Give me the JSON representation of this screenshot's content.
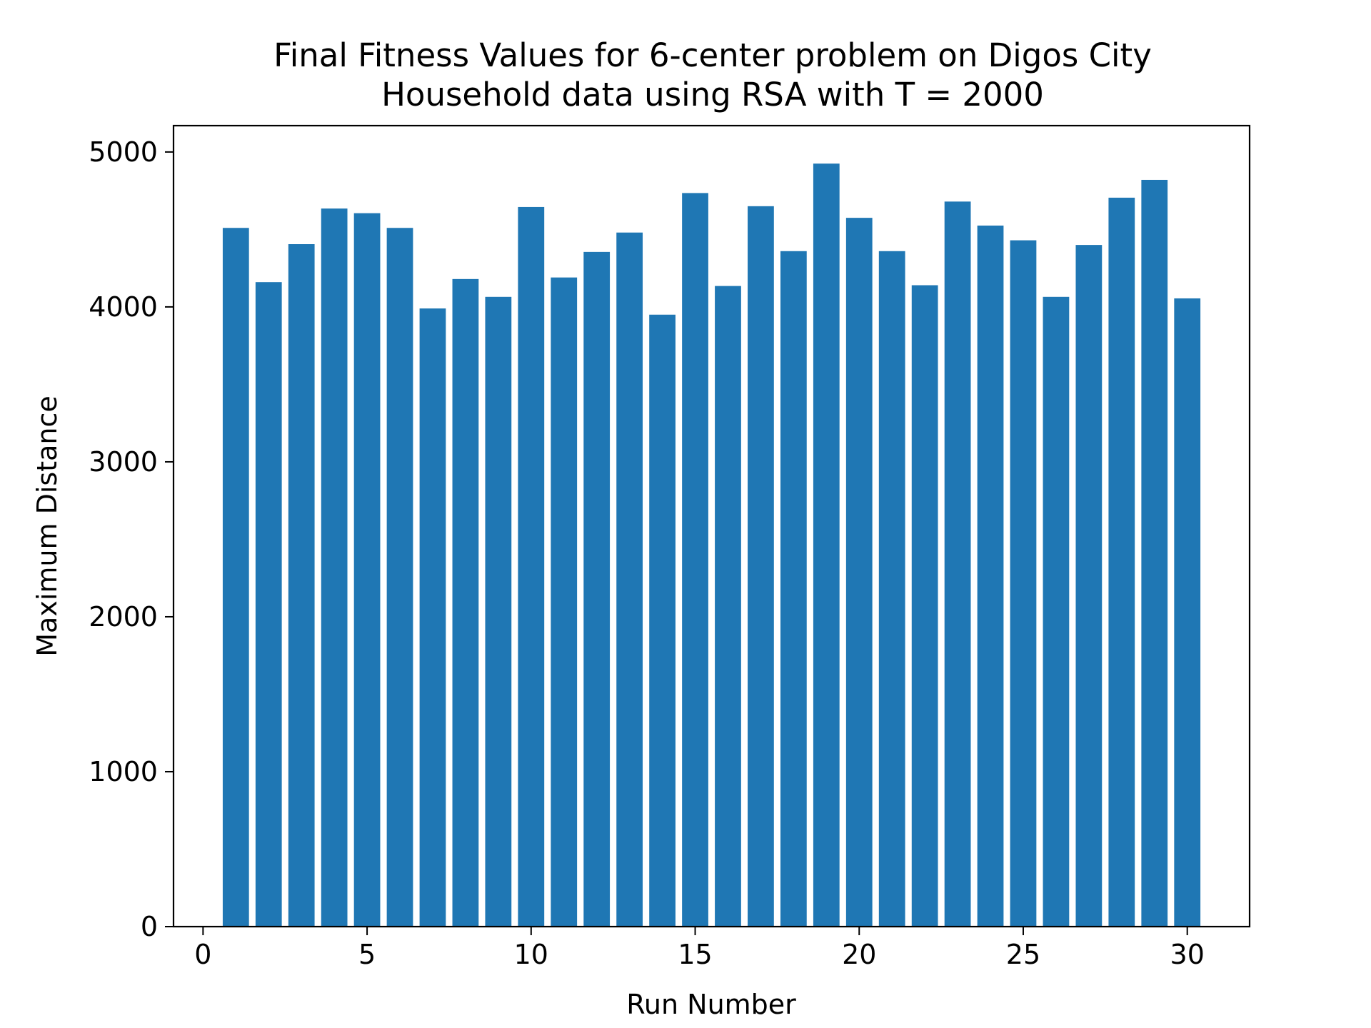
{
  "chart_data": {
    "type": "bar",
    "title_lines": [
      "Final Fitness Values for 6-center problem on Digos City",
      "Household data using RSA with T = 2000"
    ],
    "xlabel": "Run Number",
    "ylabel": "Maximum Distance",
    "x": [
      1,
      2,
      3,
      4,
      5,
      6,
      7,
      8,
      9,
      10,
      11,
      12,
      13,
      14,
      15,
      16,
      17,
      18,
      19,
      20,
      21,
      22,
      23,
      24,
      25,
      26,
      27,
      28,
      29,
      30
    ],
    "values": [
      4510,
      4160,
      4405,
      4635,
      4605,
      4510,
      3990,
      4180,
      4065,
      4645,
      4190,
      4355,
      4480,
      3950,
      4735,
      4135,
      4650,
      4360,
      4925,
      4575,
      4360,
      4140,
      4680,
      4525,
      4430,
      4065,
      4400,
      4705,
      4820,
      4055
    ],
    "xlim": [
      -0.9,
      31.9
    ],
    "ylim": [
      0,
      5170
    ],
    "xticks": [
      0,
      5,
      10,
      15,
      20,
      25,
      30
    ],
    "yticks": [
      0,
      1000,
      2000,
      3000,
      4000,
      5000
    ],
    "grid": false,
    "bar_color": "#1f77b4"
  }
}
